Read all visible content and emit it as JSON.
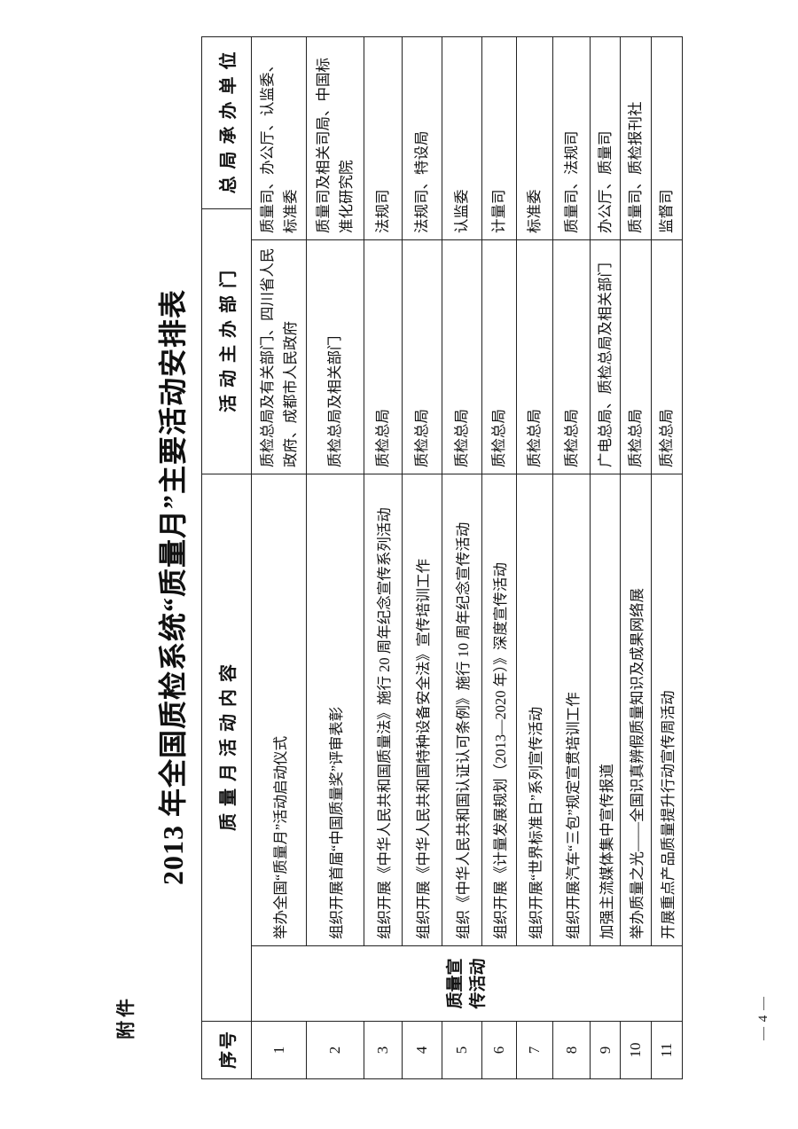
{
  "page": {
    "attachment_label": "附件",
    "title": "2013 年全国质检系统“质量月”主要活动安排表",
    "page_number": "— 4 —"
  },
  "table": {
    "headers": {
      "index": "序号",
      "content": "质量月活动内容",
      "organizer": "活动主办部门",
      "undertaker": "总局承办单位"
    },
    "category_label": "质量宣\n传活动",
    "rows": [
      {
        "no": "1",
        "content": "举办全国“质量月”活动启动仪式",
        "organizer": "质检总局及有关部门、四川省人民\n政府、成都市人民政府",
        "undertaker": "质量司、办公厅、认监委、\n标准委"
      },
      {
        "no": "2",
        "content": "组织开展首届“中国质量奖”评审表彰",
        "organizer": "质检总局及相关部门",
        "undertaker": "质量司及相关司局、中国标\n准化研究院"
      },
      {
        "no": "3",
        "content": "组织开展《中华人民共和国质量法》施行 20 周年纪念宣传系列活动",
        "organizer": "质检总局",
        "undertaker": "法规司"
      },
      {
        "no": "4",
        "content": "组织开展《中华人民共和国特种设备安全法》宣传培训工作",
        "organizer": "质检总局",
        "undertaker": "法规司、特设局"
      },
      {
        "no": "5",
        "content": "组织《中华人民共和国认证认可条例》施行 10 周年纪念宣传活动",
        "organizer": "质检总局",
        "undertaker": "认监委"
      },
      {
        "no": "6",
        "content": "组织开展《计量发展规划（2013—2020 年）》深度宣传活动",
        "organizer": "质检总局",
        "undertaker": "计量司"
      },
      {
        "no": "7",
        "content": "组织开展“世界标准日”系列宣传活动",
        "organizer": "质检总局",
        "undertaker": "标准委"
      },
      {
        "no": "8",
        "content": "组织开展汽车“三包”规定宣贯培训工作",
        "organizer": "质检总局",
        "undertaker": "质量司、法规司"
      },
      {
        "no": "9",
        "content": "加强主流媒体集中宣传报道",
        "organizer": "广电总局、质检总局及相关部门",
        "undertaker": "办公厅、质量司"
      },
      {
        "no": "10",
        "content": "举办质量之光——全国识真辨假质量知识及成果网络展",
        "organizer": "质检总局",
        "undertaker": "质量司、质检报刊社"
      },
      {
        "no": "11",
        "content": "开展重点产品质量提升行动宣传周活动",
        "organizer": "质检总局",
        "undertaker": "监督司"
      }
    ]
  }
}
